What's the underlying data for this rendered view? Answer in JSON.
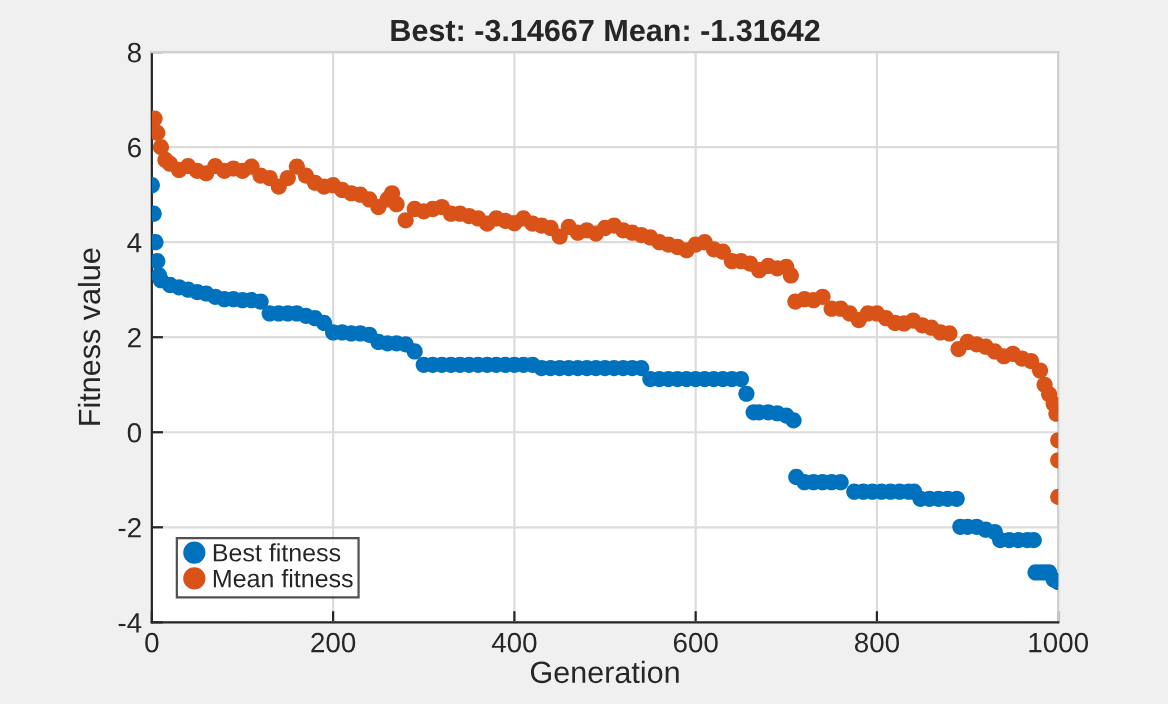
{
  "chart_data": {
    "type": "scatter",
    "title": "Best: -3.14667 Mean: -1.31642",
    "xlabel": "Generation",
    "ylabel": "Fitness value",
    "xlim": [
      0,
      1000
    ],
    "xticks": [
      0,
      200,
      400,
      600,
      800,
      1000
    ],
    "ylim": [
      -4,
      8
    ],
    "yticks": [
      -4,
      -2,
      0,
      2,
      4,
      6,
      8
    ],
    "grid": true,
    "legend": "bottom left",
    "marker": "circle",
    "series": [
      {
        "name": "Best fitness",
        "color": "#0072bd",
        "x": [
          0,
          2,
          4,
          6,
          8,
          10,
          20,
          30,
          40,
          50,
          60,
          70,
          80,
          90,
          100,
          110,
          120,
          130,
          140,
          150,
          160,
          170,
          180,
          190,
          200,
          210,
          220,
          230,
          240,
          250,
          260,
          270,
          280,
          290,
          300,
          310,
          320,
          330,
          340,
          350,
          360,
          370,
          380,
          390,
          400,
          410,
          420,
          430,
          440,
          450,
          460,
          470,
          480,
          490,
          500,
          510,
          520,
          530,
          540,
          550,
          560,
          570,
          580,
          590,
          600,
          610,
          620,
          630,
          640,
          650,
          656,
          664,
          670,
          680,
          690,
          700,
          708,
          711,
          720,
          730,
          740,
          750,
          760,
          775,
          785,
          795,
          805,
          815,
          825,
          835,
          841,
          848,
          858,
          868,
          878,
          888,
          892,
          900,
          910,
          920,
          930,
          936,
          946,
          956,
          966,
          973,
          975,
          980,
          985,
          990,
          995,
          1000
        ],
        "values": [
          5.2,
          4.6,
          4.0,
          3.6,
          3.3,
          3.2,
          3.1,
          3.05,
          3.0,
          2.95,
          2.92,
          2.85,
          2.8,
          2.8,
          2.78,
          2.78,
          2.75,
          2.5,
          2.5,
          2.5,
          2.5,
          2.45,
          2.4,
          2.3,
          2.1,
          2.1,
          2.08,
          2.08,
          2.05,
          1.9,
          1.87,
          1.87,
          1.85,
          1.7,
          1.42,
          1.42,
          1.42,
          1.42,
          1.42,
          1.42,
          1.42,
          1.42,
          1.42,
          1.42,
          1.42,
          1.42,
          1.42,
          1.35,
          1.35,
          1.35,
          1.35,
          1.35,
          1.35,
          1.35,
          1.35,
          1.35,
          1.35,
          1.35,
          1.35,
          1.12,
          1.12,
          1.12,
          1.12,
          1.12,
          1.12,
          1.12,
          1.12,
          1.12,
          1.12,
          1.12,
          0.81,
          0.42,
          0.42,
          0.42,
          0.4,
          0.35,
          0.25,
          -0.94,
          -1.05,
          -1.05,
          -1.05,
          -1.05,
          -1.05,
          -1.25,
          -1.25,
          -1.25,
          -1.25,
          -1.25,
          -1.25,
          -1.25,
          -1.25,
          -1.4,
          -1.4,
          -1.4,
          -1.4,
          -1.4,
          -1.99,
          -1.99,
          -1.99,
          -2.05,
          -2.1,
          -2.27,
          -2.27,
          -2.27,
          -2.27,
          -2.27,
          -2.95,
          -2.95,
          -2.95,
          -2.95,
          -3.1,
          -3.15
        ]
      },
      {
        "name": "Mean fitness",
        "color": "#d95319",
        "x": [
          0,
          3,
          6,
          10,
          15,
          20,
          30,
          40,
          50,
          60,
          70,
          80,
          90,
          100,
          110,
          120,
          130,
          140,
          150,
          160,
          170,
          180,
          190,
          200,
          210,
          220,
          230,
          240,
          250,
          260,
          265,
          270,
          280,
          290,
          300,
          310,
          320,
          330,
          340,
          350,
          360,
          370,
          380,
          390,
          400,
          410,
          420,
          430,
          440,
          450,
          460,
          470,
          480,
          490,
          500,
          510,
          520,
          530,
          540,
          550,
          560,
          570,
          580,
          590,
          600,
          610,
          620,
          630,
          640,
          650,
          660,
          670,
          680,
          690,
          700,
          705,
          710,
          720,
          730,
          740,
          750,
          760,
          770,
          780,
          790,
          800,
          810,
          820,
          830,
          840,
          850,
          860,
          870,
          880,
          890,
          900,
          910,
          920,
          930,
          940,
          950,
          960,
          970,
          980,
          985,
          990,
          995,
          998,
          1000,
          1000,
          1000
        ],
        "values": [
          6.4,
          6.6,
          6.3,
          6.0,
          5.73,
          5.65,
          5.52,
          5.6,
          5.5,
          5.45,
          5.6,
          5.5,
          5.55,
          5.5,
          5.59,
          5.4,
          5.35,
          5.17,
          5.35,
          5.59,
          5.4,
          5.25,
          5.17,
          5.2,
          5.1,
          5.03,
          5.0,
          4.9,
          4.74,
          4.9,
          5.03,
          4.8,
          4.46,
          4.7,
          4.65,
          4.7,
          4.74,
          4.6,
          4.6,
          4.55,
          4.5,
          4.39,
          4.5,
          4.45,
          4.4,
          4.5,
          4.39,
          4.35,
          4.3,
          4.12,
          4.32,
          4.2,
          4.25,
          4.18,
          4.3,
          4.35,
          4.25,
          4.2,
          4.15,
          4.1,
          4.0,
          3.95,
          3.9,
          3.83,
          3.95,
          4.0,
          3.85,
          3.8,
          3.6,
          3.6,
          3.55,
          3.41,
          3.5,
          3.45,
          3.48,
          3.3,
          2.75,
          2.8,
          2.78,
          2.85,
          2.6,
          2.6,
          2.5,
          2.36,
          2.5,
          2.5,
          2.4,
          2.3,
          2.29,
          2.35,
          2.25,
          2.2,
          2.1,
          2.08,
          1.75,
          1.9,
          1.85,
          1.8,
          1.7,
          1.6,
          1.65,
          1.55,
          1.5,
          1.3,
          1.0,
          0.8,
          0.6,
          0.39,
          -0.17,
          -0.59,
          -1.36
        ]
      }
    ]
  }
}
